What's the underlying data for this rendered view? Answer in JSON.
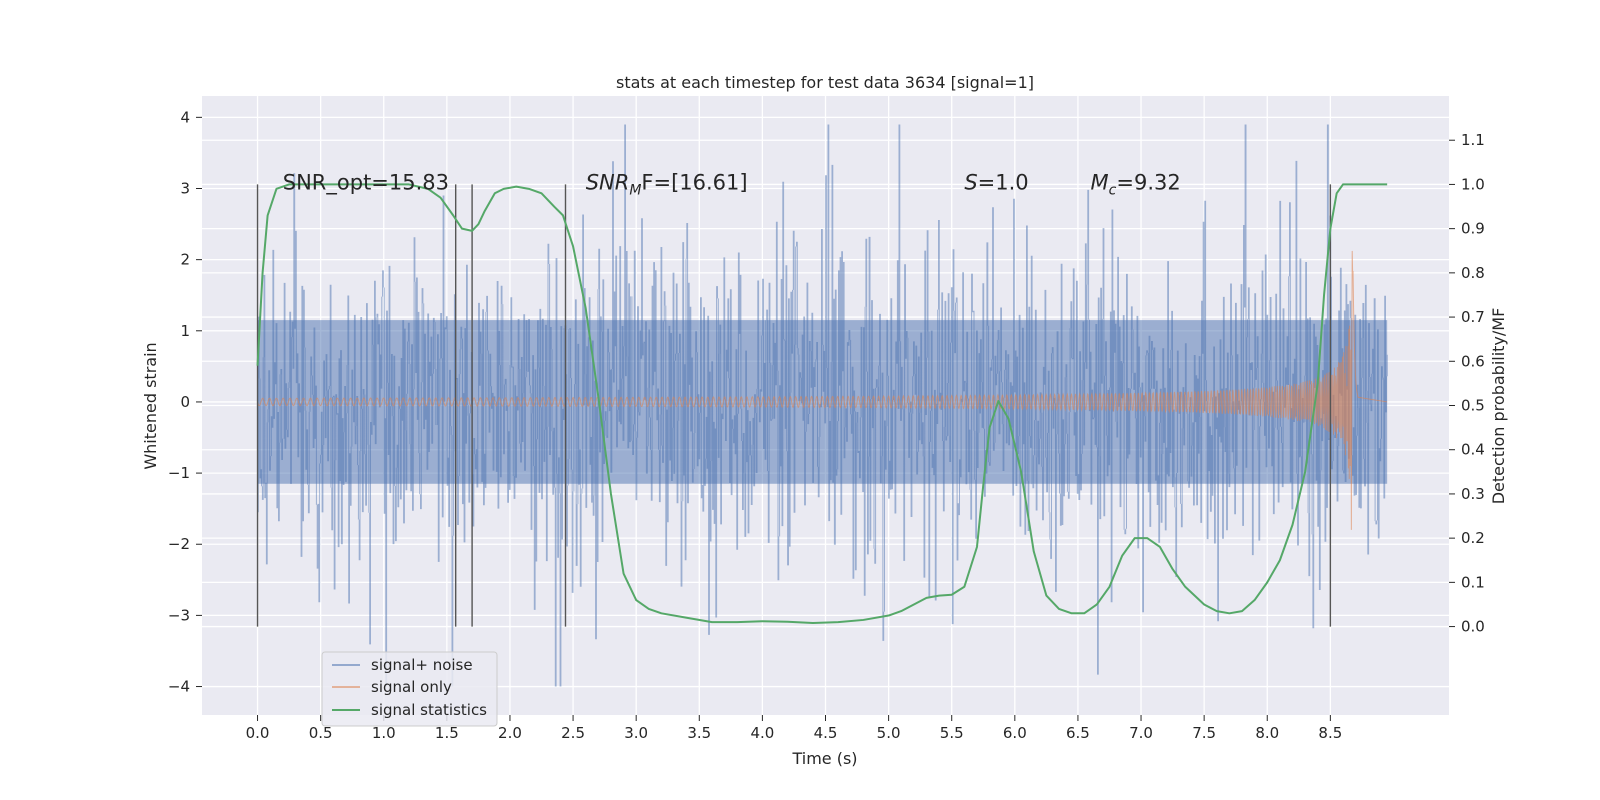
{
  "chart_data": {
    "type": "line",
    "title": "stats at each timestep for test data 3634 [signal=1]",
    "xlabel": "Time (s)",
    "ylabel": "Whitened strain",
    "ylabel_right": "Detection probability/MF",
    "xlim": [
      -0.44,
      9.44
    ],
    "ylim": [
      -4.4,
      4.3
    ],
    "ylim_right": [
      -0.2,
      1.2
    ],
    "x_ticks": [
      "0.0",
      "0.5",
      "1.0",
      "1.5",
      "2.0",
      "2.5",
      "3.0",
      "3.5",
      "4.0",
      "4.5",
      "5.0",
      "5.5",
      "6.0",
      "6.5",
      "7.0",
      "7.5",
      "8.0",
      "8.5"
    ],
    "y_ticks": [
      "4",
      "3",
      "2",
      "1",
      "0",
      "−1",
      "−2",
      "−3",
      "−4"
    ],
    "y_ticks_right": [
      "1.1",
      "1.0",
      "0.9",
      "0.8",
      "0.7",
      "0.6",
      "0.5",
      "0.4",
      "0.3",
      "0.2",
      "0.1",
      "0.0"
    ],
    "grid": true,
    "legend_position": "lower-left",
    "colors": {
      "noise": "#4c72b0",
      "signal": "#dd8452",
      "stats": "#55a868",
      "vlines": "#555555",
      "background": "#eaeaf2"
    },
    "annotations": [
      {
        "id": "snr_opt",
        "text": "SNR_opt=15.83",
        "x": 0.2
      },
      {
        "id": "snr_mf",
        "text": "SNR",
        "sub": "M",
        "tail": "F=[16.61]",
        "italic_head": true,
        "x": 2.6
      },
      {
        "id": "s",
        "text": "S",
        "tail": "=1.0",
        "italic_head": true,
        "x": 5.6
      },
      {
        "id": "mc",
        "text": "M",
        "sub": "c",
        "tail": "=9.32",
        "italic_head": true,
        "x": 6.6
      }
    ],
    "annotation_y": 3.1,
    "vertical_lines": [
      0.0,
      1.57,
      1.7,
      2.44,
      8.5
    ],
    "vertical_line_range": [
      -0.0,
      1.0
    ],
    "series": [
      {
        "name": "signal+ noise",
        "kind": "noise",
        "x_range": [
          0.0,
          8.95
        ],
        "typical_amplitude": 1.2,
        "peak_high": 3.9,
        "peak_low": -4.0
      },
      {
        "name": "signal only",
        "kind": "chirp",
        "x_range": [
          0.0,
          8.72
        ],
        "merger_time": 8.68,
        "max_amplitude": 2.2
      },
      {
        "name": "signal statistics",
        "kind": "line",
        "axis": "right",
        "x": [
          0.0,
          0.04,
          0.08,
          0.15,
          0.25,
          0.4,
          0.6,
          0.8,
          1.0,
          1.2,
          1.35,
          1.45,
          1.55,
          1.62,
          1.7,
          1.75,
          1.8,
          1.88,
          1.95,
          2.05,
          2.15,
          2.25,
          2.35,
          2.42,
          2.5,
          2.6,
          2.7,
          2.8,
          2.9,
          3.0,
          3.1,
          3.2,
          3.4,
          3.6,
          3.8,
          4.0,
          4.2,
          4.4,
          4.6,
          4.8,
          5.0,
          5.1,
          5.2,
          5.3,
          5.4,
          5.5,
          5.6,
          5.7,
          5.75,
          5.8,
          5.87,
          5.95,
          6.05,
          6.15,
          6.25,
          6.35,
          6.45,
          6.55,
          6.65,
          6.75,
          6.85,
          6.95,
          7.05,
          7.15,
          7.25,
          7.35,
          7.5,
          7.6,
          7.7,
          7.8,
          7.9,
          8.0,
          8.1,
          8.2,
          8.3,
          8.4,
          8.45,
          8.5,
          8.55,
          8.6,
          8.65,
          8.7,
          8.8,
          8.9,
          8.95
        ],
        "y": [
          0.59,
          0.8,
          0.93,
          0.99,
          1.0,
          1.0,
          1.0,
          1.0,
          1.0,
          1.0,
          0.99,
          0.97,
          0.93,
          0.9,
          0.895,
          0.91,
          0.94,
          0.98,
          0.99,
          0.995,
          0.99,
          0.98,
          0.95,
          0.93,
          0.86,
          0.72,
          0.52,
          0.3,
          0.12,
          0.06,
          0.04,
          0.03,
          0.02,
          0.01,
          0.01,
          0.012,
          0.011,
          0.008,
          0.01,
          0.015,
          0.025,
          0.035,
          0.05,
          0.065,
          0.07,
          0.072,
          0.09,
          0.18,
          0.32,
          0.45,
          0.51,
          0.47,
          0.35,
          0.17,
          0.07,
          0.04,
          0.03,
          0.03,
          0.05,
          0.09,
          0.16,
          0.2,
          0.2,
          0.18,
          0.13,
          0.09,
          0.05,
          0.035,
          0.03,
          0.035,
          0.06,
          0.1,
          0.15,
          0.23,
          0.35,
          0.55,
          0.75,
          0.9,
          0.98,
          1.0,
          1.0,
          1.0,
          1.0,
          1.0,
          1.0
        ]
      }
    ]
  }
}
